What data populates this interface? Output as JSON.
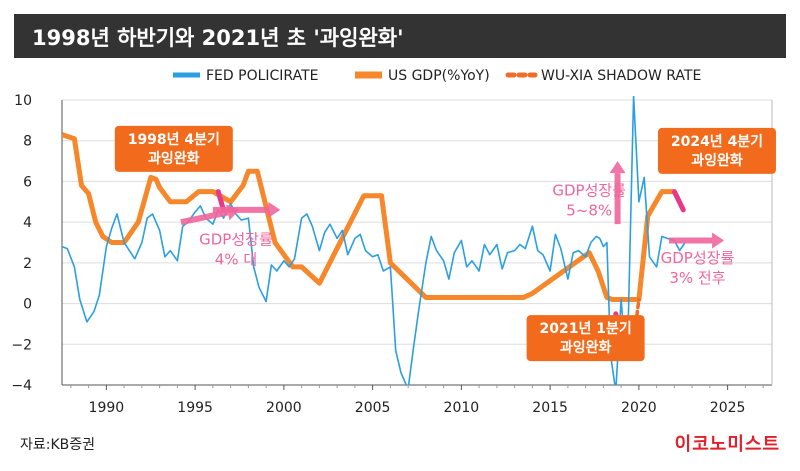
{
  "title": "1998년 하반기와 2021년 초 '과잉완화'",
  "source": "자료:KB증권",
  "brand": "이코노미스트",
  "colors": {
    "fed": "#2a9fe3",
    "gdp": "#f7872b",
    "shadow": "#f26b2a",
    "highlight": "#e5398a",
    "arrow": "#f0669c",
    "callout": "#f26b1d",
    "grid": "#dddddd"
  },
  "chart_data": {
    "type": "line",
    "xlim": [
      1987.5,
      2027.5
    ],
    "ylim": [
      -4,
      10
    ],
    "x_ticks": [
      1990,
      1995,
      2000,
      2005,
      2010,
      2015,
      2020,
      2025
    ],
    "y_ticks": [
      10,
      8,
      6,
      4,
      2,
      0,
      -2,
      -4
    ],
    "x_tick_labels": [
      "1990",
      "1995",
      "2000",
      "2005",
      "2010",
      "2015",
      "2020",
      "2025"
    ],
    "y_tick_labels": [
      "10",
      "8",
      "6",
      "4",
      "2",
      "0",
      "−2",
      "−4"
    ],
    "legend": [
      "FED POLICIRATE",
      "US GDP(%YoY)",
      "WU-XIA SHADOW RATE"
    ],
    "series": [
      {
        "name": "FED POLICIRATE",
        "style": "thin-line",
        "x": [
          1987.5,
          1987.8,
          1988.2,
          1988.5,
          1988.9,
          1989.3,
          1989.6,
          1990.0,
          1990.3,
          1990.6,
          1991.0,
          1991.3,
          1991.6,
          1992.0,
          1992.3,
          1992.6,
          1993.0,
          1993.3,
          1993.6,
          1994.0,
          1994.3,
          1994.6,
          1995.0,
          1995.3,
          1995.6,
          1996.0,
          1996.3,
          1996.6,
          1997.0,
          1997.3,
          1997.6,
          1998.0,
          1998.3,
          1998.6,
          1999.0,
          1999.3,
          1999.6,
          2000.0,
          2000.3,
          2000.6,
          2001.0,
          2001.3,
          2001.6,
          2002.0,
          2002.3,
          2002.6,
          2003.0,
          2003.3,
          2003.6,
          2004.0,
          2004.3,
          2004.6,
          2005.0,
          2005.3,
          2005.6,
          2006.0,
          2006.3,
          2006.6,
          2007.0,
          2007.3,
          2007.6,
          2008.0,
          2008.3,
          2008.6,
          2009.0,
          2009.3,
          2009.6,
          2010.0,
          2010.3,
          2010.6,
          2011.0,
          2011.3,
          2011.6,
          2012.0,
          2012.3,
          2012.6,
          2013.0,
          2013.3,
          2013.6,
          2014.0,
          2014.3,
          2014.6,
          2015.0,
          2015.3,
          2015.6,
          2016.0,
          2016.3,
          2016.6,
          2017.0,
          2017.3,
          2017.6,
          2017.8,
          2018.0,
          2018.2,
          2018.4,
          2018.7,
          2019.0,
          2019.2,
          2019.4,
          2019.7,
          2020.0,
          2020.3,
          2020.6,
          2021.0,
          2021.3,
          2021.6,
          2022.0,
          2022.3,
          2022.6
        ],
        "values": [
          2.8,
          2.7,
          1.8,
          0.2,
          -0.9,
          -0.4,
          0.4,
          2.8,
          3.7,
          4.4,
          3.0,
          2.6,
          2.2,
          3.0,
          4.2,
          4.4,
          3.6,
          2.3,
          2.6,
          2.1,
          3.8,
          4.0,
          4.5,
          4.8,
          4.2,
          3.9,
          4.6,
          4.2,
          4.9,
          4.4,
          4.1,
          4.2,
          1.8,
          0.8,
          0.1,
          1.9,
          1.6,
          2.1,
          1.8,
          2.2,
          4.2,
          4.4,
          3.8,
          2.6,
          3.5,
          3.9,
          3.2,
          3.6,
          2.4,
          3.2,
          3.4,
          2.6,
          2.3,
          2.4,
          1.6,
          1.8,
          -2.3,
          -3.4,
          -4.2,
          -2.2,
          -0.3,
          2.0,
          3.3,
          2.6,
          2.1,
          1.2,
          2.5,
          3.1,
          1.8,
          2.1,
          1.6,
          2.9,
          2.4,
          2.9,
          1.7,
          2.5,
          2.6,
          2.9,
          2.7,
          3.8,
          2.6,
          2.4,
          1.6,
          3.4,
          2.7,
          1.2,
          2.5,
          2.6,
          2.3,
          3.0,
          3.3,
          3.2,
          2.8,
          3.0,
          -2.5,
          -4.3,
          0.2,
          -2.0,
          -1.0,
          10.2,
          5.0,
          6.2,
          2.3,
          1.8,
          3.3,
          3.2,
          3.1,
          2.6,
          3.0
        ]
      },
      {
        "name": "US GDP(%YoY)",
        "style": "thick-line",
        "x": [
          1987.5,
          1988.2,
          1988.6,
          1989.0,
          1989.4,
          1989.8,
          1990.3,
          1991.0,
          1991.8,
          1992.5,
          1992.8,
          1993.0,
          1993.6,
          1994.0,
          1994.5,
          1995.2,
          1996.0,
          1997.0,
          1997.7,
          1998.0,
          1998.5,
          1999.5,
          2000.5,
          2001.0,
          2002.0,
          2004.5,
          2005.5,
          2006.0,
          2008.0,
          2013.5,
          2014.0,
          2017.2,
          2017.7,
          2018.2,
          2018.5,
          2019.0,
          2020.0,
          2020.5,
          2021.3,
          2022.0
        ],
        "values": [
          8.3,
          8.1,
          5.8,
          5.4,
          4.0,
          3.3,
          3.0,
          3.0,
          4.0,
          6.2,
          6.1,
          5.7,
          5.0,
          5.0,
          5.0,
          5.5,
          5.5,
          5.0,
          5.8,
          6.5,
          6.5,
          3.0,
          1.8,
          1.8,
          1.0,
          5.3,
          5.3,
          2.0,
          0.3,
          0.3,
          0.5,
          2.5,
          1.6,
          0.3,
          0.2,
          0.2,
          0.2,
          4.3,
          5.5,
          5.5
        ]
      },
      {
        "name": "WU-XIA SHADOW RATE",
        "style": "dotted-line",
        "x": [
          2019.0,
          2019.3,
          2019.6,
          2019.8,
          2020.0
        ],
        "values": [
          -1.2,
          -1.9,
          -1.9,
          -1.2,
          0.2
        ]
      }
    ],
    "highlights": [
      {
        "x": [
          1996.3,
          1996.6
        ],
        "values": [
          5.5,
          4.6
        ]
      },
      {
        "x": [
          2022.0,
          2022.5
        ],
        "values": [
          5.5,
          4.6
        ]
      },
      {
        "x": [
          2018.7,
          2019.0
        ],
        "values": [
          -0.5,
          -1.9
        ]
      }
    ],
    "arrows": [
      {
        "x": [
          1994.2,
          1997.5
        ],
        "values": [
          4.0,
          4.6
        ]
      },
      {
        "x": [
          1996.0,
          1999.8
        ],
        "values": [
          4.6,
          4.6
        ]
      },
      {
        "x": [
          2018.8,
          2018.8
        ],
        "values": [
          3.9,
          7.0
        ]
      },
      {
        "x": [
          2021.7,
          2024.8
        ],
        "values": [
          3.1,
          3.1
        ]
      }
    ],
    "callouts": [
      {
        "text": "1998년 4분기\n과잉완화",
        "anchor": [
          1993.8,
          7.6
        ]
      },
      {
        "text": "2024년 4분기\n과잉완화",
        "anchor": [
          2024.4,
          7.5
        ]
      },
      {
        "text": "2021년 1분기\n과잉완화",
        "anchor": [
          2017.0,
          -1.7
        ]
      }
    ],
    "annotations": [
      {
        "text": "GDP성장률\n4% 대",
        "anchor": [
          1997.3,
          2.9
        ]
      },
      {
        "text": "GDP성장률\n5~8%",
        "anchor": [
          2017.2,
          5.3
        ]
      },
      {
        "text": "GDP성장률\n3% 전후",
        "anchor": [
          2023.3,
          2.0
        ]
      }
    ]
  }
}
